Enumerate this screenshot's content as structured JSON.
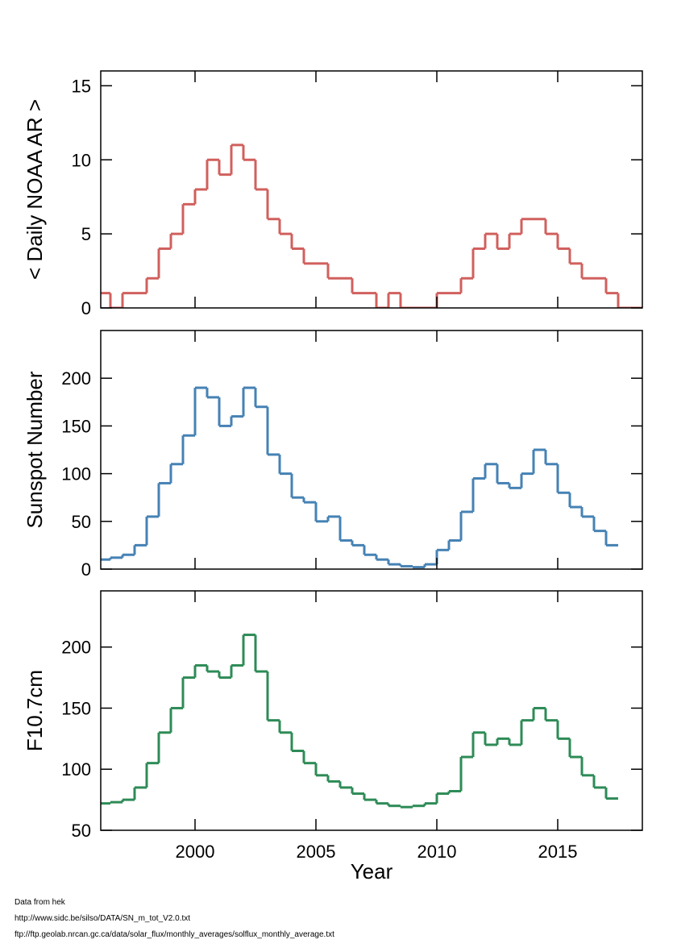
{
  "chart_data": [
    {
      "type": "step",
      "ylabel": "< Daily NOAA AR >",
      "x": [
        1996.0,
        1996.5,
        1997.0,
        1997.5,
        1998.0,
        1998.5,
        1999.0,
        1999.5,
        2000.0,
        2000.5,
        2001.0,
        2001.5,
        2002.0,
        2002.5,
        2003.0,
        2003.5,
        2004.0,
        2004.5,
        2005.0,
        2005.5,
        2006.0,
        2006.5,
        2007.0,
        2007.5,
        2008.0,
        2008.5,
        2009.0,
        2009.5,
        2010.0,
        2010.5,
        2011.0,
        2011.5,
        2012.0,
        2012.5,
        2013.0,
        2013.5,
        2014.0,
        2014.5,
        2015.0,
        2015.5,
        2016.0,
        2016.5,
        2017.0,
        2017.5,
        2018.0
      ],
      "values": [
        1,
        0,
        1,
        1,
        2,
        4,
        5,
        7,
        8,
        10,
        9,
        11,
        10,
        8,
        6,
        5,
        4,
        3,
        3,
        2,
        2,
        1,
        1,
        0,
        1,
        0,
        0,
        0,
        1,
        1,
        2,
        4,
        5,
        4,
        5,
        6,
        6,
        5,
        4,
        3,
        2,
        2,
        1,
        0,
        0
      ],
      "color": "#d0605e",
      "xlim": [
        1996.1,
        2018.5
      ],
      "ylim": [
        0,
        16
      ],
      "yticks": [
        0,
        5,
        10,
        15
      ]
    },
    {
      "type": "step",
      "ylabel": "Sunspot Number",
      "x": [
        1996.0,
        1996.5,
        1997.0,
        1997.5,
        1998.0,
        1998.5,
        1999.0,
        1999.5,
        2000.0,
        2000.5,
        2001.0,
        2001.5,
        2002.0,
        2002.5,
        2003.0,
        2003.5,
        2004.0,
        2004.5,
        2005.0,
        2005.5,
        2006.0,
        2006.5,
        2007.0,
        2007.5,
        2008.0,
        2008.5,
        2009.0,
        2009.5,
        2010.0,
        2010.5,
        2011.0,
        2011.5,
        2012.0,
        2012.5,
        2013.0,
        2013.5,
        2014.0,
        2014.5,
        2015.0,
        2015.5,
        2016.0,
        2016.5,
        2017.0
      ],
      "values": [
        10,
        12,
        15,
        25,
        55,
        90,
        110,
        140,
        190,
        180,
        150,
        160,
        190,
        170,
        120,
        100,
        75,
        70,
        50,
        55,
        30,
        25,
        15,
        10,
        5,
        3,
        2,
        5,
        20,
        30,
        60,
        95,
        110,
        90,
        85,
        100,
        125,
        110,
        80,
        65,
        55,
        40,
        25
      ],
      "color": "#4682b4",
      "xlim": [
        1996.1,
        2018.5
      ],
      "ylim": [
        0,
        250
      ],
      "yticks": [
        0,
        50,
        100,
        150,
        200
      ]
    },
    {
      "type": "step",
      "ylabel": "F10.7cm",
      "xlabel": "Year",
      "x": [
        1996.0,
        1996.5,
        1997.0,
        1997.5,
        1998.0,
        1998.5,
        1999.0,
        1999.5,
        2000.0,
        2000.5,
        2001.0,
        2001.5,
        2002.0,
        2002.5,
        2003.0,
        2003.5,
        2004.0,
        2004.5,
        2005.0,
        2005.5,
        2006.0,
        2006.5,
        2007.0,
        2007.5,
        2008.0,
        2008.5,
        2009.0,
        2009.5,
        2010.0,
        2010.5,
        2011.0,
        2011.5,
        2012.0,
        2012.5,
        2013.0,
        2013.5,
        2014.0,
        2014.5,
        2015.0,
        2015.5,
        2016.0,
        2016.5,
        2017.0
      ],
      "values": [
        72,
        73,
        75,
        85,
        105,
        130,
        150,
        175,
        185,
        180,
        175,
        185,
        210,
        180,
        140,
        130,
        115,
        105,
        95,
        90,
        85,
        80,
        75,
        72,
        70,
        69,
        70,
        72,
        80,
        82,
        110,
        130,
        120,
        125,
        120,
        140,
        150,
        140,
        125,
        110,
        95,
        85,
        76
      ],
      "color": "#2e8b57",
      "xlim": [
        1996.1,
        2018.5
      ],
      "ylim": [
        50,
        246
      ],
      "yticks": [
        50,
        100,
        150,
        200
      ],
      "xticks": [
        2000,
        2005,
        2010,
        2015
      ]
    }
  ],
  "footnotes": [
    "Data from hek",
    "http://www.sidc.be/silso/DATA/SN_m_tot_V2.0.txt",
    "ftp://ftp.geolab.nrcan.gc.ca/data/solar_flux/monthly_averages/solflux_monthly_average.txt"
  ]
}
